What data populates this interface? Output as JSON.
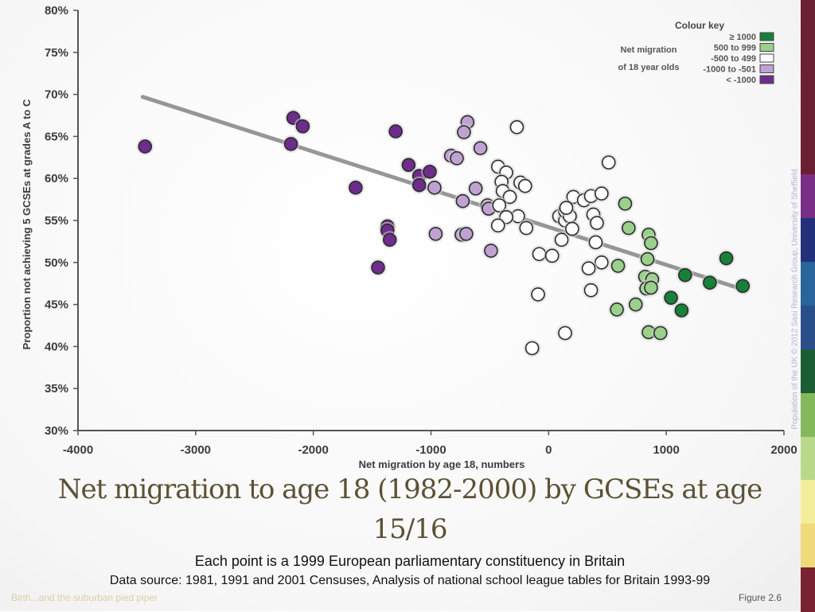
{
  "slide": {
    "title": "Net migration to age 18 (1982-2000) by GCSEs at age 15/16",
    "caption_line1": "Each point is a 1999 European parliamentary constituency in Britain",
    "caption_line2": "Data source: 1981, 1991 and 2001 Censuses, Analysis of national school league tables for Britain 1993-99",
    "footer_left": "Birth...and the suburban pied piper",
    "footer_right": "Figure 2.6",
    "side_credit": "Population of the UK © 2012 Sasi Research Group, University of Sheffield",
    "stripe_colors": [
      "#6b1f32",
      "#6b1f32",
      "#6b1f32",
      "#6b1f32",
      "#7a2f86",
      "#24307a",
      "#27659a",
      "#2a4e8a",
      "#1b5e34",
      "#84b85c",
      "#b9d98a",
      "#f4ee9c",
      "#f0da7a",
      "#7a2230"
    ]
  },
  "chart_data": {
    "type": "scatter",
    "xlabel": "Net migration by age 18, numbers",
    "ylabel": "Proportion not achieving 5 GCSEs at grades A to C",
    "xlim": [
      -4000,
      2000
    ],
    "ylim": [
      30,
      80
    ],
    "x_ticks": [
      "-4000",
      "-3000",
      "-2000",
      "-1000",
      "0",
      "1000",
      "2000"
    ],
    "y_ticks": [
      "30%",
      "35%",
      "40%",
      "45%",
      "50%",
      "55%",
      "60%",
      "65%",
      "70%",
      "75%",
      "80%"
    ],
    "grid": false,
    "trendline": {
      "x": [
        -3450,
        1650
      ],
      "y": [
        69.7,
        46.8
      ]
    },
    "legend": {
      "title": "Colour key",
      "caption_line1": "Net migration",
      "caption_line2": "of 18 year olds",
      "placement": "top-right",
      "entries": [
        {
          "label": "≥ 1000",
          "color": "#17813a"
        },
        {
          "label": "500 to 999",
          "color": "#9ad08c"
        },
        {
          "label": "-500 to 499",
          "color": "#ffffff"
        },
        {
          "label": "-1000 to -501",
          "color": "#c0a2d2"
        },
        {
          "label": "< -1000",
          "color": "#6e2c8c"
        }
      ]
    },
    "series": [
      {
        "color": "#6e2c8c",
        "points": [
          [
            -3430,
            63.8
          ],
          [
            -2170,
            67.2
          ],
          [
            -2090,
            66.2
          ],
          [
            -2190,
            64.1
          ],
          [
            -1300,
            65.6
          ],
          [
            -1640,
            58.9
          ],
          [
            -1190,
            61.6
          ],
          [
            -1100,
            60.3
          ],
          [
            -1010,
            60.8
          ],
          [
            -1100,
            59.2
          ],
          [
            -1370,
            54.3
          ],
          [
            -1370,
            53.8
          ],
          [
            -1350,
            52.7
          ],
          [
            -1450,
            49.4
          ]
        ]
      },
      {
        "color": "#c0a2d2",
        "points": [
          [
            -690,
            66.7
          ],
          [
            -720,
            65.5
          ],
          [
            -830,
            62.7
          ],
          [
            -780,
            62.4
          ],
          [
            -580,
            63.6
          ],
          [
            -970,
            58.9
          ],
          [
            -620,
            58.8
          ],
          [
            -730,
            57.3
          ],
          [
            -520,
            56.8
          ],
          [
            -510,
            56.4
          ],
          [
            -960,
            53.4
          ],
          [
            -740,
            53.3
          ],
          [
            -700,
            53.4
          ],
          [
            -490,
            51.4
          ]
        ]
      },
      {
        "color": "#ffffff",
        "points": [
          [
            -270,
            66.1
          ],
          [
            -430,
            61.4
          ],
          [
            -360,
            60.7
          ],
          [
            -400,
            59.6
          ],
          [
            -240,
            59.5
          ],
          [
            -200,
            59.1
          ],
          [
            -390,
            58.5
          ],
          [
            -330,
            57.8
          ],
          [
            -420,
            56.8
          ],
          [
            -260,
            55.5
          ],
          [
            -360,
            55.4
          ],
          [
            -430,
            54.4
          ],
          [
            -190,
            54.1
          ],
          [
            -80,
            51.0
          ],
          [
            30,
            50.8
          ],
          [
            -90,
            46.2
          ],
          [
            -140,
            39.8
          ],
          [
            90,
            55.5
          ],
          [
            140,
            55.0
          ],
          [
            140,
            56.1
          ],
          [
            180,
            55.5
          ],
          [
            210,
            57.8
          ],
          [
            300,
            57.4
          ],
          [
            380,
            55.7
          ],
          [
            360,
            57.9
          ],
          [
            410,
            54.7
          ],
          [
            450,
            58.2
          ],
          [
            510,
            61.9
          ],
          [
            150,
            56.5
          ],
          [
            110,
            52.7
          ],
          [
            200,
            54.0
          ],
          [
            400,
            52.4
          ],
          [
            450,
            50.0
          ],
          [
            340,
            49.3
          ],
          [
            360,
            46.7
          ],
          [
            140,
            41.6
          ]
        ]
      },
      {
        "color": "#9ad08c",
        "points": [
          [
            650,
            57.0
          ],
          [
            680,
            54.1
          ],
          [
            850,
            53.3
          ],
          [
            870,
            52.3
          ],
          [
            840,
            50.4
          ],
          [
            590,
            49.6
          ],
          [
            820,
            48.3
          ],
          [
            880,
            48.0
          ],
          [
            830,
            46.9
          ],
          [
            870,
            47.0
          ],
          [
            740,
            45.0
          ],
          [
            580,
            44.4
          ],
          [
            850,
            41.7
          ],
          [
            950,
            41.6
          ]
        ]
      },
      {
        "color": "#17813a",
        "points": [
          [
            1510,
            50.5
          ],
          [
            1160,
            48.5
          ],
          [
            1370,
            47.6
          ],
          [
            1650,
            47.2
          ],
          [
            1040,
            45.8
          ],
          [
            1130,
            44.3
          ]
        ]
      }
    ]
  }
}
